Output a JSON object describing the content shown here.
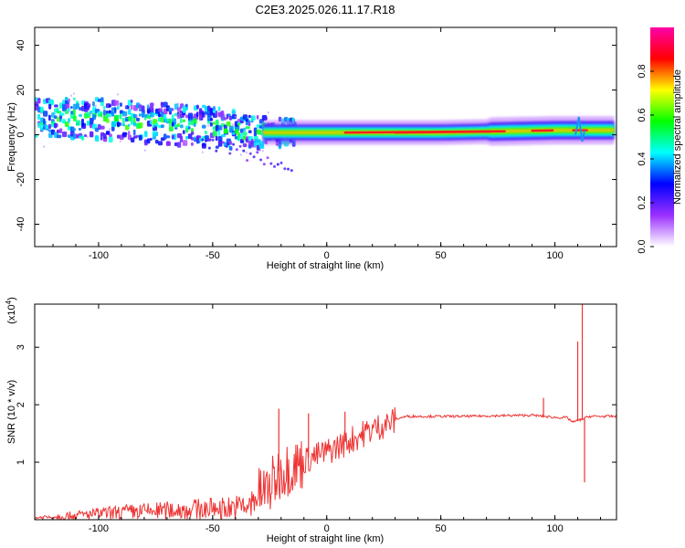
{
  "title": "C2E3.2025.026.11.17.R18",
  "chart_data": [
    {
      "type": "heatmap",
      "xlabel": "Height of straight line (km)",
      "ylabel": "Frequency (Hz)",
      "xlim": [
        -128,
        127
      ],
      "ylim": [
        -50,
        48
      ],
      "xticks": [
        -100,
        -50,
        0,
        50,
        100
      ],
      "yticks": [
        -40,
        -20,
        0,
        20,
        40
      ],
      "xtick_labels": [
        "-100",
        "-50",
        "0",
        "50",
        "100"
      ],
      "ytick_labels": [
        "-40",
        "-20",
        "0",
        "20",
        "40"
      ],
      "colorbar": {
        "label": "Normalized spectral amplitude",
        "range": [
          0,
          1
        ],
        "ticks": [
          0.0,
          0.2,
          0.4,
          0.6,
          0.8
        ],
        "tick_labels": [
          "0.0",
          "0.2",
          "0.4",
          "0.6",
          "0.8"
        ],
        "colors": [
          "#ffffff",
          "#9b30ff",
          "#0000ff",
          "#00ffff",
          "#00ff00",
          "#ffff00",
          "#ff0000",
          "#ff00aa"
        ]
      },
      "ridge": [
        {
          "x": -128,
          "y": 8
        },
        {
          "x": -100,
          "y": 7
        },
        {
          "x": -75,
          "y": 5
        },
        {
          "x": -50,
          "y": 3
        },
        {
          "x": -35,
          "y": 1
        },
        {
          "x": -25,
          "y": 1
        },
        {
          "x": 0,
          "y": 1
        },
        {
          "x": 50,
          "y": 1
        },
        {
          "x": 100,
          "y": 2
        },
        {
          "x": 127,
          "y": 2
        }
      ],
      "grid": false
    },
    {
      "type": "line",
      "xlabel": "Height of straight line (km)",
      "ylabel": "SNR (10 * v/v)",
      "y_multiplier_label": "(x10",
      "y_multiplier_exp": "4",
      "y_multiplier_close": ")",
      "xlim": [
        -128,
        127
      ],
      "ylim": [
        0,
        3.75
      ],
      "xticks": [
        -100,
        -50,
        0,
        50,
        100
      ],
      "yticks": [
        1,
        2,
        3
      ],
      "xtick_labels": [
        "-100",
        "-50",
        "0",
        "50",
        "100"
      ],
      "ytick_labels": [
        "1",
        "2",
        "3"
      ],
      "series": [
        {
          "color": "#ee3333",
          "envelope": [
            {
              "x": -128,
              "y": 0.05
            },
            {
              "x": -110,
              "y": 0.12
            },
            {
              "x": -90,
              "y": 0.2
            },
            {
              "x": -70,
              "y": 0.25
            },
            {
              "x": -50,
              "y": 0.3
            },
            {
              "x": -35,
              "y": 0.35
            },
            {
              "x": -25,
              "y": 0.6
            },
            {
              "x": -20,
              "y": 0.9
            },
            {
              "x": -10,
              "y": 1.05
            },
            {
              "x": 0,
              "y": 1.2
            },
            {
              "x": 10,
              "y": 1.4
            },
            {
              "x": 20,
              "y": 1.6
            },
            {
              "x": 30,
              "y": 1.75
            },
            {
              "x": 35,
              "y": 1.8
            },
            {
              "x": 60,
              "y": 1.8
            },
            {
              "x": 90,
              "y": 1.82
            },
            {
              "x": 95,
              "y": 1.8
            },
            {
              "x": 100,
              "y": 1.78
            },
            {
              "x": 105,
              "y": 1.78
            },
            {
              "x": 108,
              "y": 1.7
            },
            {
              "x": 112,
              "y": 1.75
            },
            {
              "x": 115,
              "y": 1.8
            },
            {
              "x": 127,
              "y": 1.8
            }
          ],
          "spikes": [
            {
              "x": -21,
              "y": 1.93
            },
            {
              "x": -8,
              "y": 1.85
            },
            {
              "x": 8,
              "y": 1.88
            },
            {
              "x": 95,
              "y": 2.12
            },
            {
              "x": 110,
              "y": 3.1
            },
            {
              "x": 112,
              "y": 3.75
            },
            {
              "x": 113,
              "y": 0.65
            }
          ]
        }
      ],
      "grid": false
    }
  ]
}
